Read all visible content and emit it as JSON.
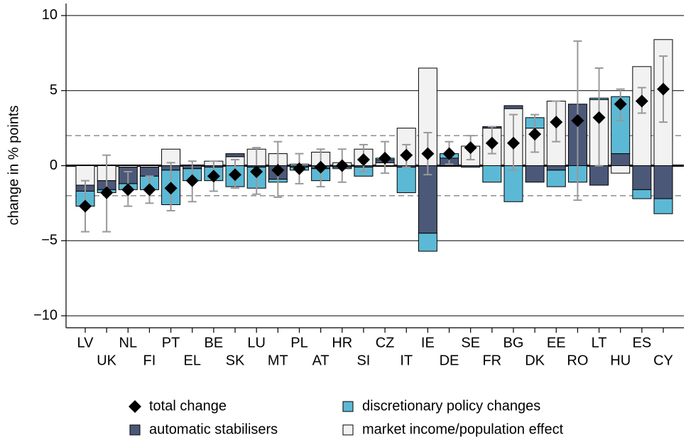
{
  "chart_data": {
    "type": "stacked-bar-with-total",
    "y_label": "change in % points",
    "categories": [
      "LV",
      "UK",
      "NL",
      "FI",
      "PT",
      "EL",
      "BE",
      "SK",
      "LU",
      "MT",
      "PL",
      "AT",
      "HR",
      "SI",
      "CZ",
      "IT",
      "IE",
      "DE",
      "SE",
      "FR",
      "BG",
      "DK",
      "EE",
      "RO",
      "LT",
      "HU",
      "ES",
      "CY"
    ],
    "series": [
      {
        "name": "market income/population effect",
        "color": "#f2f2f2",
        "values": [
          -1.3,
          -1.0,
          -0.1,
          -0.1,
          1.1,
          0.0,
          0.3,
          0.6,
          1.1,
          0.8,
          0.1,
          0.9,
          0.2,
          1.1,
          0.2,
          2.5,
          6.5,
          0.0,
          1.3,
          2.5,
          3.8,
          2.5,
          4.3,
          0.0,
          4.4,
          -0.5,
          6.6,
          8.4
        ]
      },
      {
        "name": "automatic stabilisers",
        "color": "#4b5878",
        "values": [
          -0.4,
          -0.6,
          -1.1,
          -0.6,
          -0.3,
          -0.2,
          -0.1,
          0.2,
          -0.1,
          -0.9,
          -0.1,
          -0.2,
          -0.1,
          -0.1,
          0.2,
          -0.1,
          -4.5,
          0.5,
          -0.1,
          0.1,
          0.2,
          -1.1,
          -0.3,
          4.1,
          -1.3,
          0.8,
          -1.6,
          -2.2
        ]
      },
      {
        "name": "discretionary policy changes",
        "color": "#5cb9d5",
        "values": [
          -1.0,
          -0.2,
          -0.4,
          -0.9,
          -2.3,
          -0.8,
          -0.9,
          -1.4,
          -1.4,
          -0.2,
          -0.2,
          -0.8,
          -0.1,
          -0.6,
          0.1,
          -1.7,
          -1.2,
          0.3,
          0.0,
          -1.1,
          -2.4,
          0.7,
          -1.1,
          -1.1,
          0.1,
          3.8,
          -0.6,
          -1.0
        ]
      }
    ],
    "total": {
      "name": "total change",
      "values": [
        -2.7,
        -1.8,
        -1.6,
        -1.6,
        -1.5,
        -1.0,
        -0.7,
        -0.6,
        -0.4,
        -0.3,
        -0.2,
        -0.1,
        0.0,
        0.4,
        0.5,
        0.7,
        0.8,
        0.8,
        1.2,
        1.5,
        1.5,
        2.1,
        2.9,
        3.0,
        3.2,
        4.1,
        4.3,
        5.1
      ],
      "error_low": [
        -4.4,
        -4.4,
        -2.7,
        -2.5,
        -3.0,
        -2.4,
        -1.7,
        -1.5,
        -1.9,
        -2.1,
        -1.2,
        -1.4,
        -1.1,
        -0.4,
        -0.5,
        -0.1,
        -0.6,
        0.1,
        0.4,
        0.8,
        -0.3,
        0.9,
        1.6,
        -2.3,
        0.0,
        3.0,
        3.5,
        2.9
      ],
      "error_high": [
        -1.0,
        0.7,
        -0.4,
        -0.7,
        0.2,
        0.3,
        0.3,
        0.4,
        1.2,
        1.6,
        0.8,
        1.1,
        1.1,
        1.4,
        1.6,
        1.4,
        2.2,
        1.6,
        2.0,
        2.6,
        3.4,
        3.4,
        4.3,
        8.3,
        6.5,
        5.1,
        5.2,
        7.3
      ]
    },
    "ylim": [
      -10.8,
      10.8
    ],
    "yticks": [
      {
        "value": -10,
        "label": "−10"
      },
      {
        "value": -5,
        "label": "−5"
      },
      0,
      5,
      10
    ],
    "dashed_lines": [
      -2,
      2
    ],
    "grid": true
  }
}
